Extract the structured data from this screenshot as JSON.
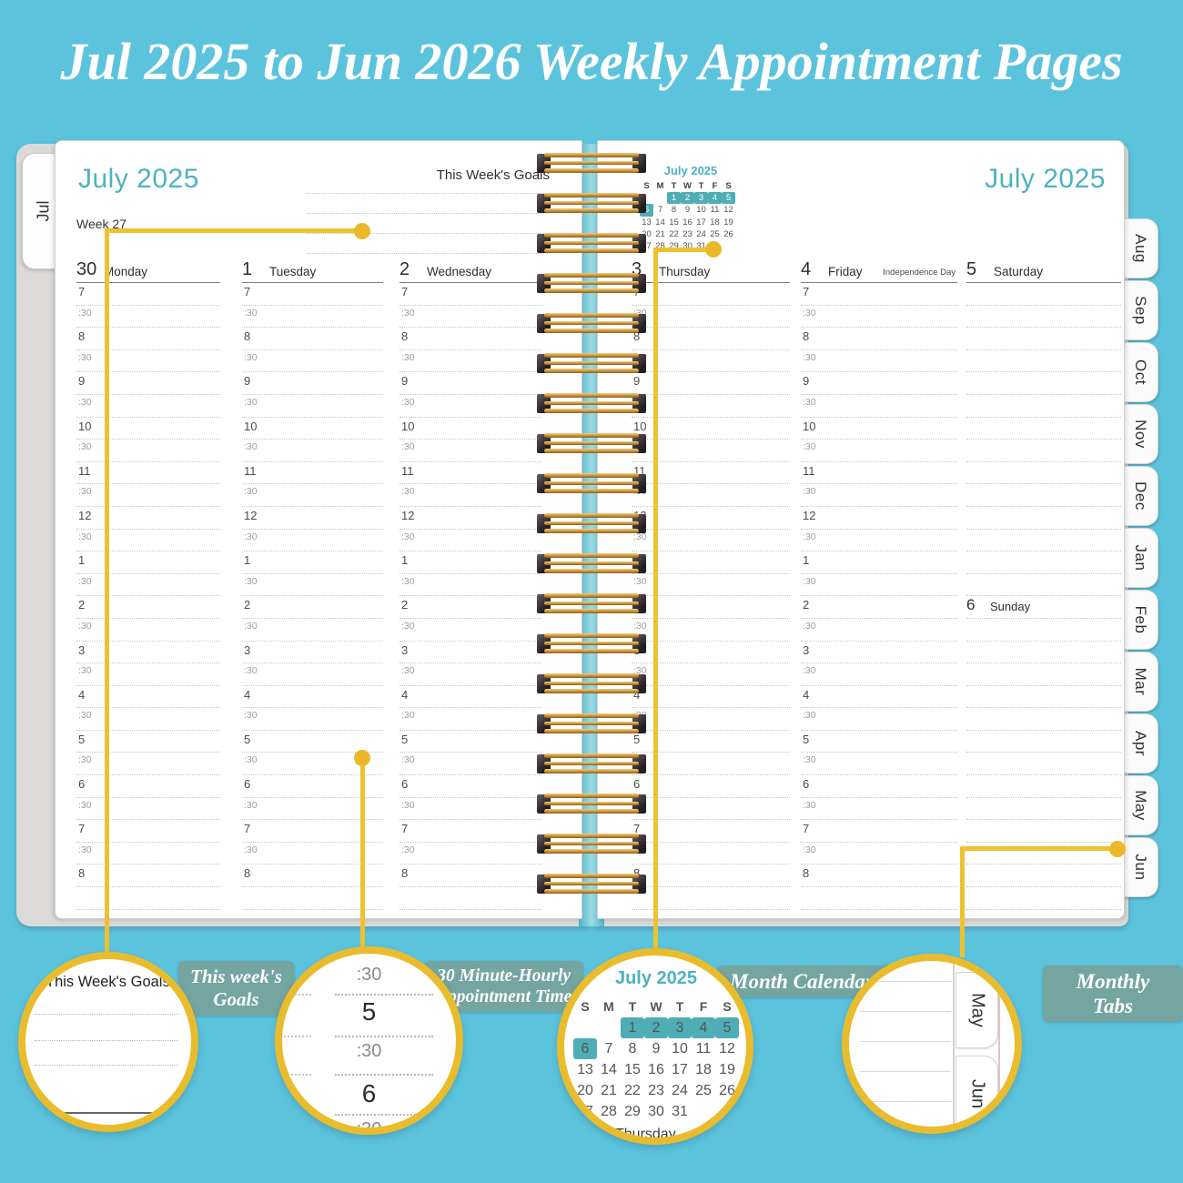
{
  "page_title": "Jul 2025 to Jun 2026 Weekly Appointment Pages",
  "colors": {
    "background": "#5cc3dd",
    "teal_text": "#4db2c0",
    "calendar_highlight": "#4fadb5",
    "badge_background": "#74a5a0",
    "callout_yellow": "#eec12f",
    "coil_gold": "#c89038"
  },
  "left_page": {
    "side_tab": "Jul",
    "month_title": "July 2025",
    "week_label": "Week 27",
    "goals_heading": "This Week's Goals",
    "day_headers": [
      {
        "date": "30",
        "day": "Monday",
        "note": ""
      },
      {
        "date": "1",
        "day": "Tuesday",
        "note": ""
      },
      {
        "date": "2",
        "day": "Wednesday",
        "note": ""
      }
    ]
  },
  "right_page": {
    "month_title": "July 2025",
    "mini_calendar": {
      "title": "July 2025",
      "weekday_header": [
        "S",
        "M",
        "T",
        "W",
        "T",
        "F",
        "S"
      ],
      "weeks": [
        [
          "",
          "",
          "1",
          "2",
          "3",
          "4",
          "5"
        ],
        [
          "6",
          "7",
          "8",
          "9",
          "10",
          "11",
          "12"
        ],
        [
          "13",
          "14",
          "15",
          "16",
          "17",
          "18",
          "19"
        ],
        [
          "20",
          "21",
          "22",
          "23",
          "24",
          "25",
          "26"
        ],
        [
          "27",
          "28",
          "29",
          "30",
          "31",
          "",
          ""
        ]
      ],
      "highlighted_days": [
        "1",
        "2",
        "3",
        "4",
        "5",
        "6"
      ]
    },
    "day_headers": [
      {
        "date": "3",
        "day": "Thursday",
        "note": ""
      },
      {
        "date": "4",
        "day": "Friday",
        "note": "Independence Day"
      },
      {
        "date": "5",
        "day": "Saturday",
        "note": ""
      }
    ],
    "sunday_header": {
      "date": "6",
      "day": "Sunday"
    },
    "month_tabs": [
      "Aug",
      "Sep",
      "Oct",
      "Nov",
      "Dec",
      "Jan",
      "Feb",
      "Mar",
      "Apr",
      "May",
      "Jun"
    ]
  },
  "time_slots": [
    "7",
    ":30",
    "8",
    ":30",
    "9",
    ":30",
    "10",
    ":30",
    "11",
    ":30",
    "12",
    ":30",
    "1",
    ":30",
    "2",
    ":30",
    "3",
    ":30",
    "4",
    ":30",
    "5",
    ":30",
    "6",
    ":30",
    "7",
    ":30",
    "8",
    ""
  ],
  "callouts": {
    "goals": {
      "badge_line1": "This week's",
      "badge_line2": "Goals",
      "sample_heading": "This Week's Goals"
    },
    "half_hour": {
      "badge_line1": "30 Minute-Hourly",
      "badge_line2": "Appointment Time",
      "sample_slots": [
        ":30",
        "5",
        ":30",
        "6",
        ":30"
      ]
    },
    "month_cal": {
      "badge": "Month Calendars",
      "clipped_text": "Thursday"
    },
    "tabs": {
      "badge": "Monthly Tabs",
      "sample_tabs": [
        "May",
        "Jun"
      ]
    }
  }
}
